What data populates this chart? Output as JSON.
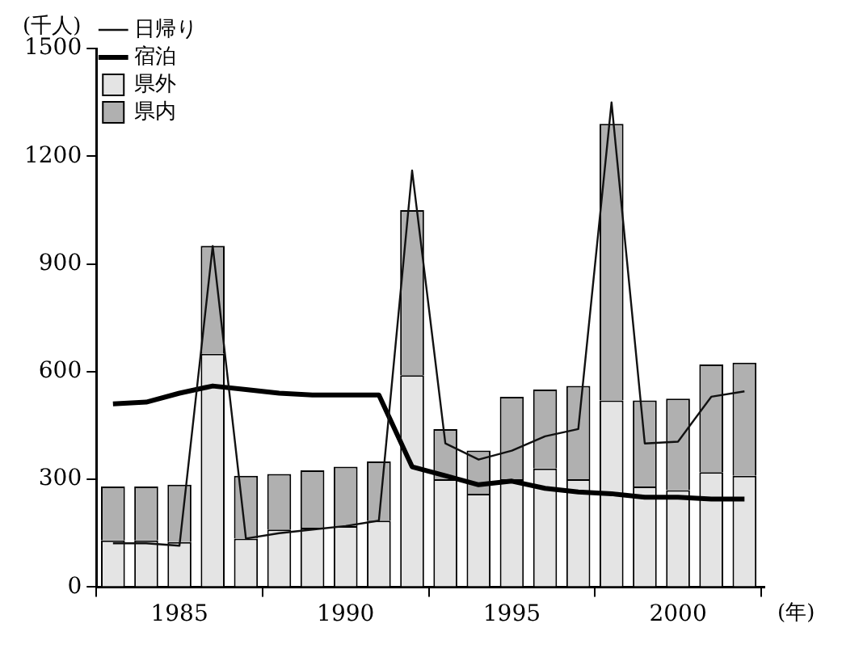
{
  "chart_data": {
    "type": "bar",
    "stacked": true,
    "ylabel": "(千人)",
    "xlabel": "(年)",
    "x": [
      1983,
      1984,
      1985,
      1986,
      1987,
      1988,
      1989,
      1990,
      1991,
      1992,
      1993,
      1994,
      1995,
      1996,
      1997,
      1998,
      1999,
      2000,
      2001,
      2002
    ],
    "xlim": [
      1982.5,
      2002.6
    ],
    "xticks": [
      1985,
      1990,
      1995,
      2000
    ],
    "ylim": [
      0,
      1500
    ],
    "yticks": [
      0,
      300,
      600,
      900,
      1200,
      1500
    ],
    "grid": false,
    "legend": "top left",
    "series": [
      {
        "name": "県外",
        "color": "#e4e4e4",
        "values": [
          130,
          130,
          125,
          650,
          135,
          160,
          165,
          170,
          185,
          590,
          300,
          260,
          300,
          330,
          300,
          520,
          280,
          270,
          320,
          310
        ]
      },
      {
        "name": "県内",
        "color": "#b0b0b0",
        "values": [
          150,
          150,
          160,
          300,
          175,
          155,
          160,
          165,
          165,
          460,
          140,
          120,
          230,
          220,
          260,
          770,
          240,
          255,
          300,
          315
        ]
      },
      {
        "name": "日帰り",
        "type": "line",
        "color": "#111111",
        "values": [
          122,
          122,
          115,
          950,
          135,
          150,
          160,
          170,
          185,
          1160,
          400,
          355,
          380,
          420,
          440,
          1350,
          400,
          405,
          530,
          545
        ]
      },
      {
        "name": "宿泊",
        "type": "line",
        "color": "#000000",
        "values": [
          510,
          515,
          540,
          560,
          550,
          540,
          535,
          535,
          535,
          335,
          310,
          285,
          295,
          275,
          265,
          260,
          250,
          250,
          245,
          245
        ]
      }
    ]
  }
}
